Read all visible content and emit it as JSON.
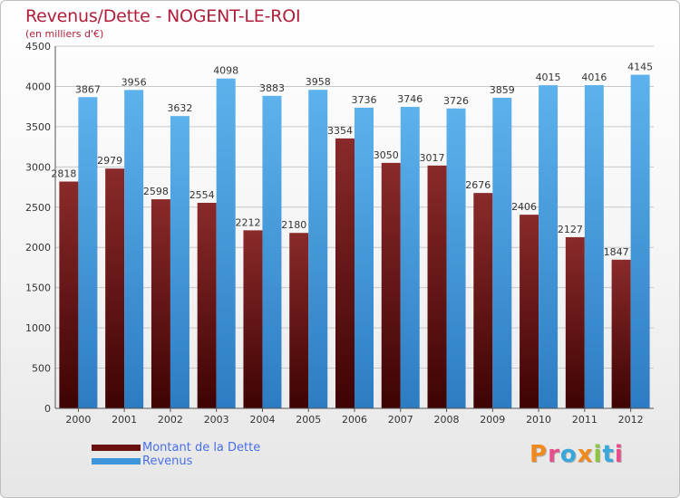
{
  "title": "Revenus/Dette - NOGENT-LE-ROI",
  "subtitle": "(en milliers d'€)",
  "logo": {
    "text": "Proxiti",
    "colors": [
      "#f08a1e",
      "#e84c8b",
      "#3aa7dc",
      "#f08a1e",
      "#8cc63f",
      "#3aa7dc",
      "#e84c8b"
    ]
  },
  "legend": [
    {
      "label": "Montant de la Dette",
      "color": "#6b1010"
    },
    {
      "label": "Revenus",
      "color": "#3d96dc"
    }
  ],
  "chart_data": {
    "type": "bar",
    "categories": [
      "2000",
      "2001",
      "2002",
      "2003",
      "2004",
      "2005",
      "2006",
      "2007",
      "2008",
      "2009",
      "2010",
      "2011",
      "2012"
    ],
    "series": [
      {
        "name": "Montant de la Dette",
        "color": "#6b1010",
        "values": [
          2818,
          2979,
          2598,
          2554,
          2212,
          2180,
          3354,
          3050,
          3017,
          2676,
          2406,
          2127,
          1847
        ]
      },
      {
        "name": "Revenus",
        "color": "#3d96dc",
        "values": [
          3867,
          3956,
          3632,
          4098,
          3883,
          3958,
          3736,
          3746,
          3726,
          3859,
          4015,
          4016,
          4145
        ]
      }
    ],
    "yticks": [
      0,
      500,
      1000,
      1500,
      2000,
      2500,
      3000,
      3500,
      4000,
      4500
    ],
    "ylim": [
      0,
      4500
    ],
    "grid": true,
    "legend_position": "bottom-left"
  }
}
